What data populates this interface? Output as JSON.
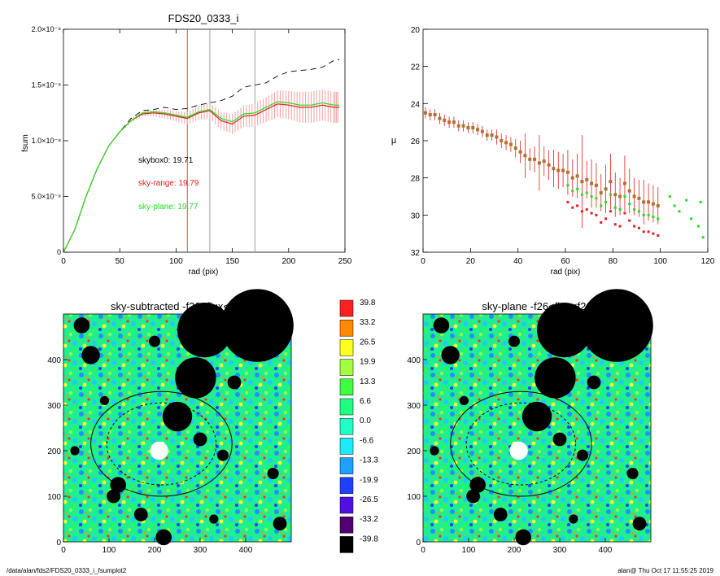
{
  "colors": {
    "black": "#000000",
    "red": "#e02020",
    "pink": "#f4a0a0",
    "green": "#20dd20",
    "brown": "#b07030",
    "grey": "#888888"
  },
  "top_left": {
    "title": "FDS20_0333_i",
    "xlabel": "rad (pix)",
    "ylabel": "fsum",
    "xticks": [
      "0",
      "50",
      "100",
      "150",
      "200",
      "250"
    ],
    "yticks": [
      "0",
      "5.0×10⁻⁹",
      "1.0×10⁻⁸",
      "1.5×10⁻⁸",
      "2.0×10⁻⁸"
    ],
    "annotations": {
      "skybox0": "skybox0: 19.71",
      "sky_range": "sky-range: 19.79",
      "sky_plane": "sky-plane: 19.77"
    }
  },
  "top_right": {
    "xlabel": "rad (pix)",
    "ylabel": "μ",
    "xticks": [
      "0",
      "20",
      "40",
      "60",
      "80",
      "100",
      "120"
    ],
    "yticks": [
      "20",
      "22",
      "24",
      "26",
      "28",
      "30",
      "32"
    ]
  },
  "bottom_left": {
    "title": "sky-subtracted -f26<flux<f26",
    "xticks": [
      "0",
      "100",
      "200",
      "300",
      "400"
    ],
    "yticks": [
      "0",
      "100",
      "200",
      "300",
      "400"
    ]
  },
  "bottom_right": {
    "title": "sky-plane -f26<flux<f26",
    "xticks": [
      "0",
      "100",
      "200",
      "300",
      "400"
    ],
    "yticks": [
      "0",
      "100",
      "200",
      "300",
      "400"
    ]
  },
  "colorbar": {
    "labels": [
      "39.8",
      "33.2",
      "26.5",
      "19.9",
      "13.3",
      "6.6",
      "0.0",
      "-6.6",
      "-13.3",
      "-19.9",
      "-26.5",
      "-33.2",
      "-39.8"
    ],
    "colors": [
      "#ff2020",
      "#ff8a00",
      "#ffff20",
      "#a0ff40",
      "#40ff40",
      "#20ff80",
      "#20ffc8",
      "#20e8ff",
      "#20a0ff",
      "#2040ff",
      "#5010e0",
      "#500070",
      "#000000"
    ]
  },
  "footer": {
    "path": "/data/alan/fds2/FDS20_0333_i_fsumplot2",
    "user_date": "alan@  Thu Oct 17 11:55:25 2019"
  },
  "chart_data": [
    {
      "type": "line",
      "title": "FDS20_0333_i",
      "xlabel": "rad (pix)",
      "ylabel": "fsum",
      "xlim": [
        0,
        250
      ],
      "ylim": [
        0,
        2e-08
      ],
      "vertical_lines": [
        {
          "x": 110,
          "color": "red"
        },
        {
          "x": 130,
          "color": "grey"
        },
        {
          "x": 170,
          "color": "grey"
        }
      ],
      "series": [
        {
          "color": "black",
          "style": "dashed",
          "x": [
            0,
            10,
            20,
            30,
            40,
            50,
            60,
            70,
            80,
            90,
            100,
            110,
            120,
            130,
            140,
            150,
            160,
            170,
            180,
            190,
            200,
            210,
            220,
            230,
            240,
            245
          ],
          "y": [
            0,
            2e-09,
            5e-09,
            7.5e-09,
            9.5e-09,
            1.08e-08,
            1.2e-08,
            1.27e-08,
            1.28e-08,
            1.3e-08,
            1.28e-08,
            1.29e-08,
            1.32e-08,
            1.34e-08,
            1.36e-08,
            1.4e-08,
            1.48e-08,
            1.5e-08,
            1.52e-08,
            1.58e-08,
            1.62e-08,
            1.63e-08,
            1.64e-08,
            1.66e-08,
            1.72e-08,
            1.73e-08
          ]
        },
        {
          "color": "red",
          "style": "solid",
          "x": [
            0,
            10,
            20,
            30,
            40,
            50,
            60,
            70,
            80,
            90,
            100,
            110,
            120,
            130,
            140,
            150,
            160,
            170,
            180,
            190,
            200,
            210,
            220,
            230,
            240,
            245
          ],
          "y": [
            0,
            2e-09,
            5e-09,
            7.5e-09,
            9.5e-09,
            1.08e-08,
            1.18e-08,
            1.24e-08,
            1.25e-08,
            1.24e-08,
            1.22e-08,
            1.2e-08,
            1.25e-08,
            1.27e-08,
            1.18e-08,
            1.15e-08,
            1.22e-08,
            1.23e-08,
            1.28e-08,
            1.33e-08,
            1.32e-08,
            1.3e-08,
            1.3e-08,
            1.32e-08,
            1.3e-08,
            1.3e-08
          ]
        },
        {
          "color": "green",
          "style": "solid",
          "x": [
            0,
            10,
            20,
            30,
            40,
            50,
            60,
            70,
            80,
            90,
            100,
            110,
            120,
            130,
            140,
            150,
            160,
            170,
            180,
            190,
            200,
            210,
            220,
            230,
            240,
            245
          ],
          "y": [
            0,
            2e-09,
            5e-09,
            7.5e-09,
            9.5e-09,
            1.08e-08,
            1.18e-08,
            1.25e-08,
            1.26e-08,
            1.25e-08,
            1.23e-08,
            1.21e-08,
            1.26e-08,
            1.28e-08,
            1.2e-08,
            1.17e-08,
            1.24e-08,
            1.25e-08,
            1.3e-08,
            1.35e-08,
            1.34e-08,
            1.32e-08,
            1.32e-08,
            1.34e-08,
            1.32e-08,
            1.32e-08
          ]
        }
      ]
    },
    {
      "type": "scatter",
      "xlabel": "rad (pix)",
      "ylabel": "μ",
      "xlim": [
        0,
        120
      ],
      "ylim": [
        32,
        20
      ],
      "profile": {
        "x": [
          1,
          3,
          5,
          7,
          9,
          11,
          13,
          15,
          17,
          19,
          21,
          23,
          25,
          27,
          29,
          31,
          33,
          35,
          37,
          39,
          41,
          43,
          45,
          47,
          49,
          51,
          53,
          55,
          57,
          59,
          61,
          63,
          65,
          67,
          69,
          71,
          73,
          75,
          77,
          79,
          81,
          83,
          85,
          87,
          89,
          91,
          93,
          95,
          97,
          99
        ],
        "y": [
          24.5,
          24.6,
          24.6,
          24.8,
          24.9,
          25.0,
          25.0,
          25.2,
          25.2,
          25.3,
          25.3,
          25.4,
          25.5,
          25.7,
          25.7,
          25.8,
          26.0,
          26.1,
          26.2,
          26.4,
          26.6,
          26.8,
          27.0,
          27.0,
          27.2,
          27.1,
          27.3,
          27.5,
          27.6,
          27.6,
          27.7,
          28.0,
          27.9,
          28.2,
          28.1,
          28.3,
          28.4,
          28.8,
          28.6,
          28.2,
          28.9,
          29.0,
          28.3,
          28.7,
          29.0,
          29.1,
          29.3,
          29.3,
          29.4,
          29.5
        ],
        "err": [
          0.3,
          0.3,
          0.3,
          0.3,
          0.3,
          0.3,
          0.3,
          0.3,
          0.3,
          0.3,
          0.3,
          0.3,
          0.3,
          0.3,
          0.3,
          0.4,
          0.4,
          0.4,
          0.4,
          0.5,
          0.6,
          1.2,
          0.6,
          0.7,
          1.5,
          0.8,
          0.8,
          1.0,
          1.0,
          0.9,
          1.2,
          1.0,
          1.2,
          2.5,
          1.0,
          1.3,
          1.2,
          1.0,
          1.3,
          1.5,
          1.2,
          1.0,
          1.5,
          1.2,
          1.0,
          1.0,
          1.2,
          1.0,
          1.0,
          1.0
        ]
      }
    },
    {
      "type": "heatmap",
      "title": "sky-subtracted -f26<flux<f26",
      "xlim": [
        0,
        500
      ],
      "ylim": [
        0,
        500
      ]
    },
    {
      "type": "heatmap",
      "title": "sky-plane -f26<flux<f26",
      "xlim": [
        0,
        500
      ],
      "ylim": [
        0,
        500
      ]
    }
  ]
}
